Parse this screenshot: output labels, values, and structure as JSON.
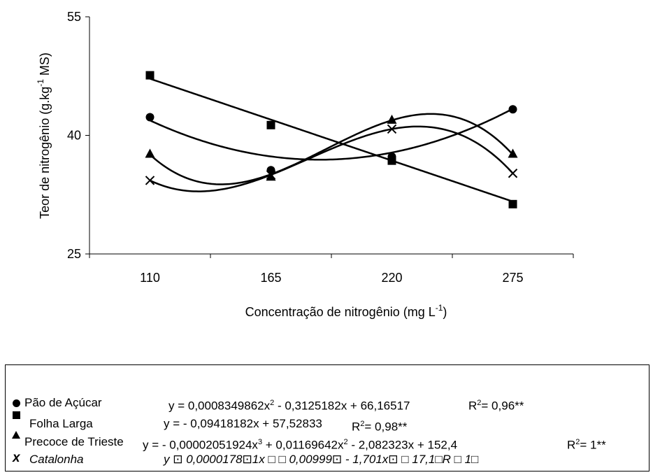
{
  "chart_data": {
    "type": "scatter",
    "xlabel": "Concentração de nitrogênio (mg L",
    "xlabel_sup": "-1",
    "xlabel_end": ")",
    "ylabel": "Teor de nitrogênio (g.kg",
    "ylabel_sup": "-1",
    "ylabel_end": " MS)",
    "categories": [
      "110",
      "165",
      "220",
      "275"
    ],
    "x": [
      110,
      165,
      220,
      275
    ],
    "ylim": [
      25,
      55
    ],
    "yticks": [
      "25",
      "40",
      "55"
    ],
    "grid": false,
    "legend_position": "bottom",
    "series": [
      {
        "name": "Pão de Açúcar",
        "marker": "circle",
        "values": [
          42.3,
          35.6,
          37.3,
          43.3
        ],
        "fit": "quadratic",
        "coef": [
          0.0008349862,
          -0.3125182,
          66.16517
        ]
      },
      {
        "name": "Folha Larga",
        "marker": "square",
        "values": [
          47.6,
          41.3,
          36.8,
          31.3
        ],
        "fit": "linear",
        "coef": [
          -0.09418182,
          57.52833
        ]
      },
      {
        "name": "Precoce de Trieste",
        "marker": "triangle",
        "values": [
          37.7,
          34.8,
          42.0,
          37.7
        ],
        "fit": "cubic",
        "coef": [
          -2.051924e-05,
          0.01169642,
          -2.082323,
          152.4
        ]
      },
      {
        "name": "Catalonha",
        "marker": "x",
        "values": [
          34.3,
          35.0,
          40.8,
          35.2
        ],
        "fit": "cubic",
        "coef": [
          -1.78e-05,
          0.00999,
          -1.701,
          17.1
        ]
      }
    ]
  },
  "legend": {
    "rows": [
      {
        "name": "Pão de Açúcar",
        "eq": "y =  0,0008349862x",
        "eq_sup1": "2",
        "eq_mid": " - 0,3125182x + 66,16517",
        "r2": "R",
        "r2_sup": "2",
        "r2_val": "= 0,96**"
      },
      {
        "name": "Folha Larga",
        "eq": "y = - 0,09418182x + 57,52833",
        "r2": "R",
        "r2_sup": "2",
        "r2_val": "= 0,98**"
      },
      {
        "name": "Precoce de Trieste",
        "eq": "y = - 0,00002051924x",
        "eq_sup1": "3",
        "eq_mid": " +  0,01169642x",
        "eq_sup2": "2",
        "eq_end": " - 2,082323x + 152,4",
        "r2": "R",
        "r2_sup": "2",
        "r2_val": "= 1**"
      },
      {
        "name": "Catalonha",
        "eq_garbled": "y ⊡  0,0000178⊡1x    □ □  0,00999⊡   - 1,701x⊡   □ 17,1□R   □ 1□"
      }
    ]
  }
}
